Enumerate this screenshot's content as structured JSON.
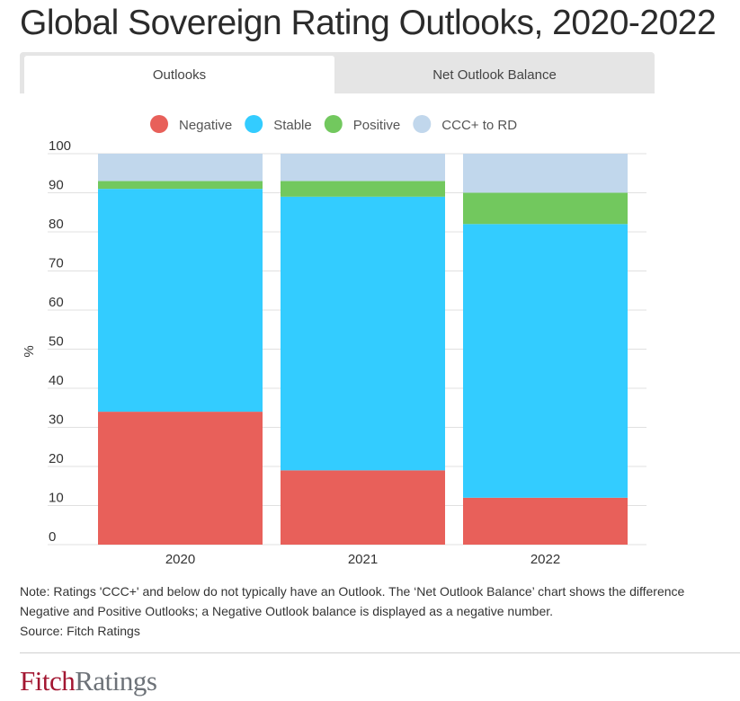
{
  "title": "Global Sovereign Rating Outlooks, 2020-2022",
  "tabs": [
    {
      "label": "Outlooks",
      "active": true
    },
    {
      "label": "Net Outlook Balance",
      "active": false
    }
  ],
  "colors": {
    "Negative": "#e8605a",
    "Stable": "#33ccff",
    "Positive": "#72c85e",
    "CCC+ to RD": "#c1d7ec"
  },
  "chart_data": {
    "type": "bar",
    "stacked": true,
    "title": "Global Sovereign Rating Outlooks, 2020-2022",
    "xlabel": "",
    "ylabel": "%",
    "ylim": [
      0,
      100
    ],
    "yticks": [
      0,
      10,
      20,
      30,
      40,
      50,
      60,
      70,
      80,
      90,
      100
    ],
    "grid": true,
    "legend_position": "top-center",
    "categories": [
      "2020",
      "2021",
      "2022"
    ],
    "series": [
      {
        "name": "Negative",
        "values": [
          34,
          19,
          12
        ]
      },
      {
        "name": "Stable",
        "values": [
          57,
          70,
          70
        ]
      },
      {
        "name": "Positive",
        "values": [
          2,
          4,
          8
        ]
      },
      {
        "name": "CCC+ to RD",
        "values": [
          7,
          7,
          10
        ]
      }
    ]
  },
  "note": {
    "line1": "Note: Ratings 'CCC+' and below do not typically have an Outlook. The ‘Net Outlook Balance’ chart shows the difference",
    "line2": "Negative and Positive Outlooks; a Negative Outlook balance is displayed as a negative number.",
    "source": "Source: Fitch Ratings"
  },
  "logo": {
    "part1": "Fitch",
    "part2": "Ratings"
  }
}
